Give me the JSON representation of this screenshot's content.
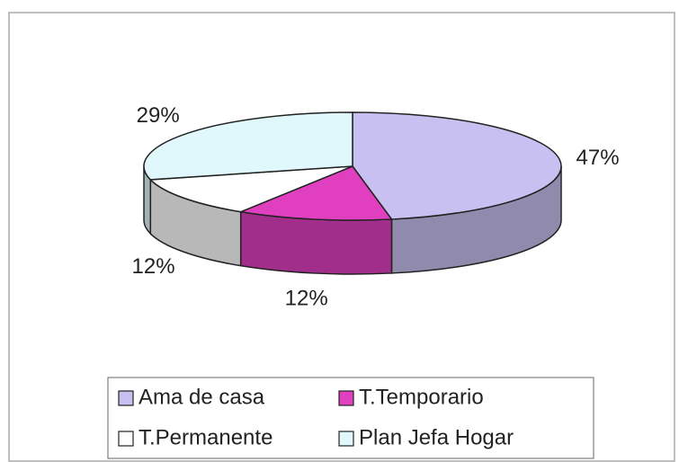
{
  "chart_data": {
    "type": "pie",
    "categories": [
      "Ama de casa",
      "T.Temporario",
      "T.Permanente",
      "Plan Jefa Hogar"
    ],
    "values": [
      47,
      12,
      12,
      29
    ],
    "value_labels": [
      "47%",
      "12%",
      "12%",
      "29%"
    ],
    "colors": [
      "#c8c0f0",
      "#e040c0",
      "#ffffff",
      "#e0f8fc"
    ],
    "legend": "bottom"
  }
}
